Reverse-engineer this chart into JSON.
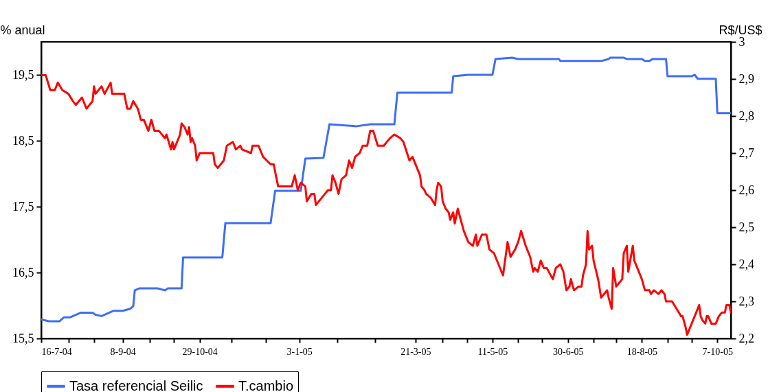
{
  "chart_data": {
    "type": "line",
    "ylabel": "% anual",
    "y2label": "R$/US$",
    "legend": "bottom",
    "grid": false,
    "xlim": [
      "2004-07-16",
      "2005-10-16"
    ],
    "xticks": [
      {
        "value": "2004-07-16",
        "label": "16-7-04"
      },
      {
        "value": "2004-08-03",
        "label": null
      },
      {
        "value": "2004-08-20",
        "label": null
      },
      {
        "value": "2004-09-08",
        "label": "8-9-04"
      },
      {
        "value": "2004-09-26",
        "label": null
      },
      {
        "value": "2004-10-12",
        "label": null
      },
      {
        "value": "2004-10-29",
        "label": "29-10-04"
      },
      {
        "value": "2004-11-19",
        "label": null
      },
      {
        "value": "2004-12-12",
        "label": null
      },
      {
        "value": "2005-01-03",
        "label": "3-1-05"
      },
      {
        "value": "2005-01-28",
        "label": null
      },
      {
        "value": "2005-02-22",
        "label": null
      },
      {
        "value": "2005-03-21",
        "label": "21-3-05"
      },
      {
        "value": "2005-04-08",
        "label": null
      },
      {
        "value": "2005-04-24",
        "label": null
      },
      {
        "value": "2005-05-11",
        "label": "11-5-05"
      },
      {
        "value": "2005-05-28",
        "label": null
      },
      {
        "value": "2005-06-13",
        "label": null
      },
      {
        "value": "2005-06-30",
        "label": "30-6-05"
      },
      {
        "value": "2005-07-17",
        "label": null
      },
      {
        "value": "2005-08-01",
        "label": null
      },
      {
        "value": "2005-08-18",
        "label": "18-8-05"
      },
      {
        "value": "2005-09-04",
        "label": null
      },
      {
        "value": "2005-09-20",
        "label": null
      },
      {
        "value": "2005-10-07",
        "label": "7-10-05"
      }
    ],
    "ylim": [
      15.5,
      20
    ],
    "yticks": [
      {
        "value": 15.5,
        "label": "15,5"
      },
      {
        "value": 16.5,
        "label": "16,5"
      },
      {
        "value": 17.5,
        "label": "17,5"
      },
      {
        "value": 18.5,
        "label": "18,5"
      },
      {
        "value": 19.5,
        "label": "19,5"
      }
    ],
    "y2lim": [
      2.2,
      3
    ],
    "y2ticks": [
      {
        "value": 2.2,
        "label": "2,2"
      },
      {
        "value": 2.3,
        "label": "2,3"
      },
      {
        "value": 2.4,
        "label": "2,4"
      },
      {
        "value": 2.5,
        "label": "2,5"
      },
      {
        "value": 2.6,
        "label": "2,6"
      },
      {
        "value": 2.7,
        "label": "2,7"
      },
      {
        "value": 2.8,
        "label": "2,8"
      },
      {
        "value": 2.9,
        "label": "2,9"
      },
      3
    ],
    "series": [
      {
        "name": "Tasa referencial Seilic",
        "color": "#3d6ef5",
        "x": [
          "2004-07-16",
          "2004-07-21",
          "2004-07-28",
          "2004-07-31",
          "2004-08-04",
          "2004-08-11",
          "2004-08-19",
          "2004-08-21",
          "2004-08-25",
          "2004-09-02",
          "2004-09-08",
          "2004-09-13",
          "2004-09-15",
          "2004-09-16",
          "2004-09-19",
          "2004-10-01",
          "2004-10-06",
          "2004-10-08",
          "2004-10-17",
          "2004-10-18",
          "2004-11-13",
          "2004-11-15",
          "2004-12-15",
          "2004-12-18",
          "2005-01-04",
          "2005-01-07",
          "2005-01-19",
          "2005-01-23",
          "2005-02-10",
          "2005-02-19",
          "2005-03-07",
          "2005-03-09",
          "2005-04-14",
          "2005-04-15",
          "2005-04-25",
          "2005-05-11",
          "2005-05-13",
          "2005-05-24",
          "2005-05-28",
          "2005-06-24",
          "2005-06-25",
          "2005-07-22",
          "2005-07-27",
          "2005-07-28",
          "2005-08-06",
          "2005-08-08",
          "2005-08-18",
          "2005-08-20",
          "2005-08-23",
          "2005-08-25",
          "2005-09-03",
          "2005-09-04",
          "2005-09-20",
          "2005-09-22",
          "2005-09-24",
          "2005-10-06",
          "2005-10-07",
          "2005-10-16"
        ],
        "values": [
          15.79,
          15.76,
          15.76,
          15.82,
          15.82,
          15.89,
          15.89,
          15.86,
          15.84,
          15.92,
          15.92,
          15.95,
          15.99,
          16.23,
          16.26,
          16.26,
          16.23,
          16.26,
          16.26,
          16.73,
          16.73,
          17.25,
          17.25,
          17.74,
          17.74,
          18.23,
          18.24,
          18.75,
          18.72,
          18.75,
          18.75,
          19.23,
          19.23,
          19.48,
          19.5,
          19.5,
          19.74,
          19.76,
          19.74,
          19.74,
          19.71,
          19.71,
          19.74,
          19.76,
          19.76,
          19.74,
          19.74,
          19.71,
          19.71,
          19.74,
          19.74,
          19.48,
          19.48,
          19.5,
          19.44,
          19.44,
          18.92,
          18.92
        ]
      },
      {
        "name": "T.cambio",
        "color": "#ff0000",
        "axis": "y2",
        "x": [
          "2004-07-16",
          "2004-07-19",
          "2004-07-22",
          "2004-07-25",
          "2004-07-27",
          "2004-07-30",
          "2004-08-03",
          "2004-08-06",
          "2004-08-08",
          "2004-08-12",
          "2004-08-15",
          "2004-08-19",
          "2004-08-20",
          "2004-08-21",
          "2004-08-25",
          "2004-08-27",
          "2004-08-31",
          "2004-09-01",
          "2004-09-04",
          "2004-09-09",
          "2004-09-11",
          "2004-09-13",
          "2004-09-15",
          "2004-09-18",
          "2004-09-20",
          "2004-09-22",
          "2004-09-25",
          "2004-09-27",
          "2004-09-29",
          "2004-10-02",
          "2004-10-06",
          "2004-10-07",
          "2004-10-10",
          "2004-10-11",
          "2004-10-12",
          "2004-10-16",
          "2004-10-17",
          "2004-10-19",
          "2004-10-21",
          "2004-10-22",
          "2004-10-23",
          "2004-10-24",
          "2004-10-26",
          "2004-10-27",
          "2004-10-29",
          "2004-11-03",
          "2004-11-07",
          "2004-11-08",
          "2004-11-10",
          "2004-11-14",
          "2004-11-16",
          "2004-11-20",
          "2004-11-22",
          "2004-11-25",
          "2004-11-26",
          "2004-12-02",
          "2004-12-03",
          "2004-12-07",
          "2004-12-10",
          "2004-12-15",
          "2004-12-17",
          "2004-12-20",
          "2004-12-23",
          "2004-12-26",
          "2004-12-29",
          "2004-12-31",
          "2005-01-02",
          "2005-01-04",
          "2005-01-07",
          "2005-01-08",
          "2005-01-11",
          "2005-01-13",
          "2005-01-14",
          "2005-01-20",
          "2005-01-22",
          "2005-01-24",
          "2005-01-25",
          "2005-01-27",
          "2005-01-29",
          "2005-01-31",
          "2005-02-03",
          "2005-02-05",
          "2005-02-07",
          "2005-02-09",
          "2005-02-12",
          "2005-02-14",
          "2005-02-17",
          "2005-02-19",
          "2005-02-21",
          "2005-02-24",
          "2005-02-28",
          "2005-03-04",
          "2005-03-07",
          "2005-03-11",
          "2005-03-13",
          "2005-03-17",
          "2005-03-19",
          "2005-03-22",
          "2005-03-24",
          "2005-03-25",
          "2005-03-27",
          "2005-03-28",
          "2005-03-31",
          "2005-04-03",
          "2005-04-04",
          "2005-04-05",
          "2005-04-07",
          "2005-04-08",
          "2005-04-10",
          "2005-04-12",
          "2005-04-13",
          "2005-04-15",
          "2005-04-16",
          "2005-04-18",
          "2005-04-20",
          "2005-04-22",
          "2005-04-25",
          "2005-04-28",
          "2005-04-30",
          "2005-05-01",
          "2005-05-04",
          "2005-05-07",
          "2005-05-09",
          "2005-05-12",
          "2005-05-15",
          "2005-05-18",
          "2005-05-21",
          "2005-05-23",
          "2005-05-26",
          "2005-05-28",
          "2005-05-30",
          "2005-06-02",
          "2005-06-05",
          "2005-06-07",
          "2005-06-08",
          "2005-06-10",
          "2005-06-12",
          "2005-06-14",
          "2005-06-16",
          "2005-06-20",
          "2005-06-22",
          "2005-06-25",
          "2005-06-27",
          "2005-06-29",
          "2005-07-01",
          "2005-07-02",
          "2005-07-04",
          "2005-07-07",
          "2005-07-09",
          "2005-07-10",
          "2005-07-12",
          "2005-07-13",
          "2005-07-14",
          "2005-07-16",
          "2005-07-17",
          "2005-07-20",
          "2005-07-22",
          "2005-07-24",
          "2005-07-26",
          "2005-07-27",
          "2005-07-29",
          "2005-07-30",
          "2005-08-01",
          "2005-08-05",
          "2005-08-06",
          "2005-08-08",
          "2005-08-09",
          "2005-08-12",
          "2005-08-13",
          "2005-08-15",
          "2005-08-18",
          "2005-08-20",
          "2005-08-23",
          "2005-08-24",
          "2005-08-26",
          "2005-08-29",
          "2005-08-31",
          "2005-09-02",
          "2005-09-03",
          "2005-09-07",
          "2005-09-10",
          "2005-09-13",
          "2005-09-14",
          "2005-09-16",
          "2005-09-17",
          "2005-09-20",
          "2005-09-22",
          "2005-09-23",
          "2005-09-25",
          "2005-09-26",
          "2005-09-27",
          "2005-09-29",
          "2005-09-30",
          "2005-10-01",
          "2005-10-03",
          "2005-10-06",
          "2005-10-08",
          "2005-10-10",
          "2005-10-12",
          "2005-10-13",
          "2005-10-15",
          "2005-10-16"
        ],
        "values": [
          2.91,
          2.91,
          2.87,
          2.87,
          2.89,
          2.87,
          2.86,
          2.84,
          2.83,
          2.85,
          2.82,
          2.84,
          2.88,
          2.86,
          2.88,
          2.86,
          2.89,
          2.86,
          2.86,
          2.86,
          2.82,
          2.82,
          2.84,
          2.82,
          2.79,
          2.79,
          2.76,
          2.79,
          2.76,
          2.76,
          2.74,
          2.75,
          2.71,
          2.73,
          2.71,
          2.75,
          2.78,
          2.77,
          2.75,
          2.77,
          2.73,
          2.74,
          2.72,
          2.68,
          2.7,
          2.7,
          2.7,
          2.67,
          2.66,
          2.68,
          2.72,
          2.73,
          2.71,
          2.72,
          2.71,
          2.7,
          2.72,
          2.72,
          2.69,
          2.67,
          2.67,
          2.61,
          2.61,
          2.61,
          2.61,
          2.64,
          2.6,
          2.62,
          2.61,
          2.57,
          2.59,
          2.59,
          2.56,
          2.59,
          2.6,
          2.6,
          2.64,
          2.62,
          2.59,
          2.63,
          2.64,
          2.68,
          2.66,
          2.69,
          2.7,
          2.72,
          2.72,
          2.76,
          2.76,
          2.72,
          2.72,
          2.74,
          2.75,
          2.74,
          2.73,
          2.68,
          2.69,
          2.66,
          2.64,
          2.61,
          2.6,
          2.59,
          2.58,
          2.56,
          2.6,
          2.62,
          2.61,
          2.57,
          2.55,
          2.54,
          2.52,
          2.54,
          2.51,
          2.55,
          2.52,
          2.49,
          2.46,
          2.45,
          2.48,
          2.45,
          2.48,
          2.48,
          2.44,
          2.43,
          2.4,
          2.37,
          2.46,
          2.42,
          2.44,
          2.46,
          2.49,
          2.45,
          2.42,
          2.38,
          2.39,
          2.38,
          2.41,
          2.39,
          2.39,
          2.36,
          2.39,
          2.4,
          2.38,
          2.33,
          2.34,
          2.36,
          2.33,
          2.34,
          2.34,
          2.37,
          2.4,
          2.49,
          2.44,
          2.45,
          2.41,
          2.36,
          2.31,
          2.32,
          2.33,
          2.31,
          2.28,
          2.39,
          2.34,
          2.36,
          2.43,
          2.45,
          2.38,
          2.45,
          2.41,
          2.39,
          2.36,
          2.33,
          2.33,
          2.32,
          2.33,
          2.32,
          2.33,
          2.32,
          2.3,
          2.3,
          2.28,
          2.26,
          2.26,
          2.23,
          2.21,
          2.24,
          2.26,
          2.27,
          2.29,
          2.26,
          2.25,
          2.24,
          2.26,
          2.26,
          2.24,
          2.24,
          2.26,
          2.27,
          2.27,
          2.29,
          2.29,
          2.27
        ]
      }
    ]
  }
}
